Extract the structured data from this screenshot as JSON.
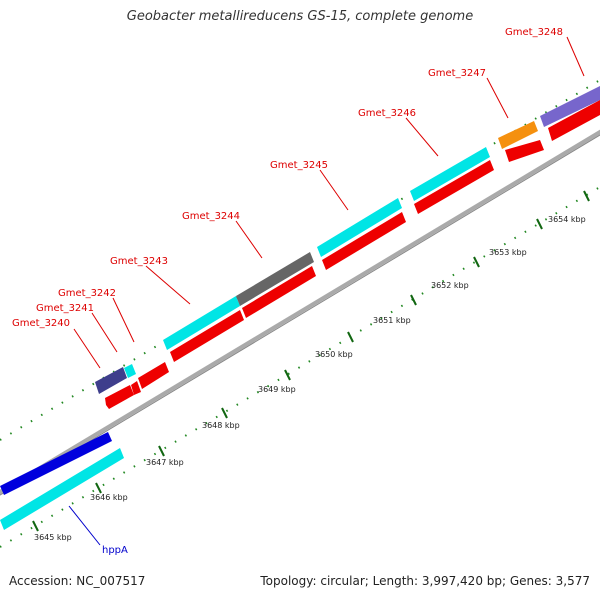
{
  "title": "Geobacter metallireducens GS-15, complete genome",
  "footer": {
    "accession": "Accession: NC_007517",
    "stats": "Topology: circular; Length: 3,997,420 bp; Genes: 3,577"
  },
  "colors": {
    "forward_cds": "#00e5e5",
    "reverse_cds": "#ee0000",
    "label_red": "#dd0000",
    "label_blue": "#0000cc",
    "backbone": "#aaaaaa",
    "tick": "#228822"
  },
  "genes": [
    {
      "label": "Gmet_3240",
      "color": "#3e3e8c"
    },
    {
      "label": "Gmet_3241",
      "color": "#00e5e5"
    },
    {
      "label": "Gmet_3242",
      "color": "#ee0000"
    },
    {
      "label": "Gmet_3243",
      "color": "#00e5e5"
    },
    {
      "label": "Gmet_3244",
      "color": "#666666"
    },
    {
      "label": "Gmet_3245",
      "color": "#00e5e5"
    },
    {
      "label": "Gmet_3246",
      "color": "#00e5e5"
    },
    {
      "label": "Gmet_3247",
      "color": "#f5900f"
    },
    {
      "label": "Gmet_3248",
      "color": "#7766cc"
    },
    {
      "label": "hppA",
      "color": "#0000dd"
    }
  ],
  "scale": [
    "3645 kbp",
    "3646 kbp",
    "3647 kbp",
    "3648 kbp",
    "3649 kbp",
    "3650 kbp",
    "3651 kbp",
    "3652 kbp",
    "3653 kbp",
    "3654 kbp"
  ]
}
